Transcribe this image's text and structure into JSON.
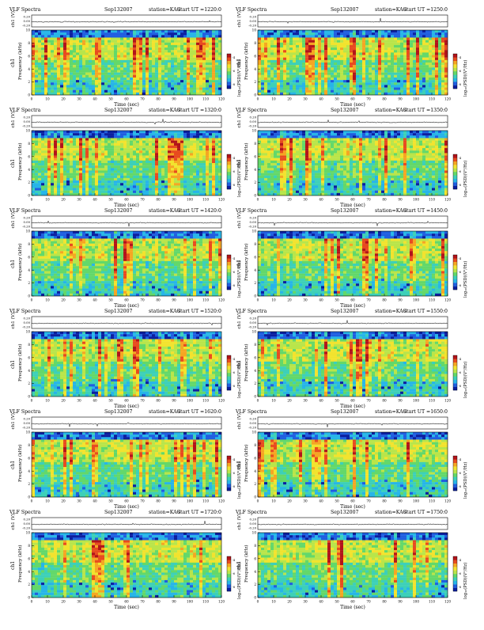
{
  "common": {
    "header_title": "VLF Spectra",
    "date_label": "Sep132007",
    "station_label": "station=KAG",
    "start_label_prefix": "start  UT  =",
    "xlabel": "Time  (sec)",
    "ylabel_top": "ch1 (V)",
    "ylabel_spec_channel": "ch1",
    "ylabel_spec": "Frequency  (kHz)",
    "colorbar_label": "log₁₀(PSD)(V²/Hz)",
    "top_yticks": [
      "0.20",
      "0.00",
      "-0.20"
    ],
    "spec_yticks": [
      "0",
      "2",
      "4",
      "6",
      "8",
      "10"
    ],
    "xticks": [
      "0",
      "10",
      "20",
      "30",
      "40",
      "50",
      "60",
      "70",
      "80",
      "90",
      "100",
      "110",
      "120"
    ],
    "colorbar_ticks": [
      "-4",
      "-6",
      "-8"
    ],
    "colormap": [
      "#0b1fa0",
      "#1f5ee0",
      "#27b5e8",
      "#3dd0b8",
      "#63d86a",
      "#b9e54a",
      "#f2e32e",
      "#f5a623",
      "#e84b1f",
      "#b2141a"
    ]
  },
  "chart_data": [
    {
      "type": "heatmap",
      "start_time": "1220:0",
      "x_range": [
        0,
        120
      ],
      "y_range_khz": [
        0,
        10
      ],
      "top_ylim": [
        -0.2,
        0.2
      ]
    },
    {
      "type": "heatmap",
      "start_time": "1250:0",
      "x_range": [
        0,
        120
      ],
      "y_range_khz": [
        0,
        10
      ],
      "top_ylim": [
        -0.2,
        0.2
      ]
    },
    {
      "type": "heatmap",
      "start_time": "1320:0",
      "x_range": [
        0,
        120
      ],
      "y_range_khz": [
        0,
        10
      ],
      "top_ylim": [
        -0.2,
        0.2
      ]
    },
    {
      "type": "heatmap",
      "start_time": "1350:0",
      "x_range": [
        0,
        120
      ],
      "y_range_khz": [
        0,
        10
      ],
      "top_ylim": [
        -0.2,
        0.2
      ]
    },
    {
      "type": "heatmap",
      "start_time": "1420:0",
      "x_range": [
        0,
        120
      ],
      "y_range_khz": [
        0,
        10
      ],
      "top_ylim": [
        -0.2,
        0.2
      ]
    },
    {
      "type": "heatmap",
      "start_time": "1450:0",
      "x_range": [
        0,
        120
      ],
      "y_range_khz": [
        0,
        10
      ],
      "top_ylim": [
        -0.2,
        0.2
      ]
    },
    {
      "type": "heatmap",
      "start_time": "1520:0",
      "x_range": [
        0,
        120
      ],
      "y_range_khz": [
        0,
        10
      ],
      "top_ylim": [
        -0.2,
        0.2
      ]
    },
    {
      "type": "heatmap",
      "start_time": "1550:0",
      "x_range": [
        0,
        120
      ],
      "y_range_khz": [
        0,
        10
      ],
      "top_ylim": [
        -0.2,
        0.2
      ]
    },
    {
      "type": "heatmap",
      "start_time": "1620:0",
      "x_range": [
        0,
        120
      ],
      "y_range_khz": [
        0,
        10
      ],
      "top_ylim": [
        -0.2,
        0.2
      ]
    },
    {
      "type": "heatmap",
      "start_time": "1650:0",
      "x_range": [
        0,
        120
      ],
      "y_range_khz": [
        0,
        10
      ],
      "top_ylim": [
        -0.2,
        0.2
      ]
    },
    {
      "type": "heatmap",
      "start_time": "1720:0",
      "x_range": [
        0,
        120
      ],
      "y_range_khz": [
        0,
        10
      ],
      "top_ylim": [
        -0.2,
        0.2
      ]
    },
    {
      "type": "heatmap",
      "start_time": "1750:0",
      "x_range": [
        0,
        120
      ],
      "y_range_khz": [
        0,
        10
      ],
      "top_ylim": [
        -0.2,
        0.2
      ]
    }
  ]
}
